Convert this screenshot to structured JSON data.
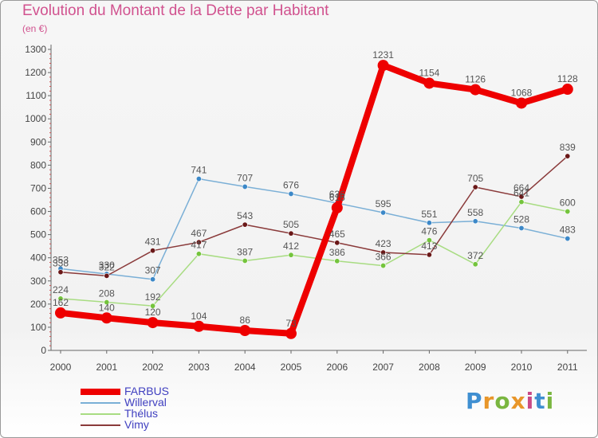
{
  "title": "Evolution du Montant de la Dette par Habitant",
  "subtitle": "(en €)",
  "logo": {
    "letters": [
      "P",
      "r",
      "o",
      "x",
      "i",
      "t",
      "i"
    ],
    "colors": [
      "#3f8fd1",
      "#e8962a",
      "#7ab640",
      "#e8962a",
      "#c94a86",
      "#3f8fd1",
      "#7ab640"
    ]
  },
  "chart_data": {
    "type": "line",
    "title": "Evolution du Montant de la Dette par Habitant",
    "ylabel": "(en €)",
    "xlabel": "",
    "x": [
      "2000",
      "2001",
      "2002",
      "2003",
      "2004",
      "2005",
      "2006",
      "2007",
      "2008",
      "2009",
      "2010",
      "2011"
    ],
    "ylim": [
      0,
      1300
    ],
    "yticks": [
      0,
      100,
      200,
      300,
      400,
      500,
      600,
      700,
      800,
      900,
      1000,
      1100,
      1200,
      1300
    ],
    "grid": false,
    "legend_position": "bottom-left",
    "series": [
      {
        "name": "FARBUS",
        "color": "#ee0000",
        "marker_color": "#ee0000",
        "emphasis": true,
        "values": [
          162,
          140,
          120,
          104,
          86,
          73,
          616,
          1231,
          1154,
          1126,
          1068,
          1128
        ]
      },
      {
        "name": "Willerval",
        "color": "#7aafd6",
        "marker_color": "#3c88c8",
        "emphasis": false,
        "values": [
          353,
          330,
          307,
          741,
          707,
          676,
          636,
          595,
          551,
          558,
          528,
          483
        ]
      },
      {
        "name": "Thélus",
        "color": "#a8dc82",
        "marker_color": "#74c43c",
        "emphasis": false,
        "values": [
          224,
          208,
          192,
          417,
          387,
          412,
          386,
          366,
          476,
          372,
          641,
          600
        ]
      },
      {
        "name": "Vimy",
        "color": "#8a3a3a",
        "marker_color": "#6a1818",
        "emphasis": false,
        "values": [
          338,
          322,
          431,
          467,
          543,
          505,
          465,
          423,
          413,
          705,
          664,
          839
        ]
      }
    ]
  }
}
